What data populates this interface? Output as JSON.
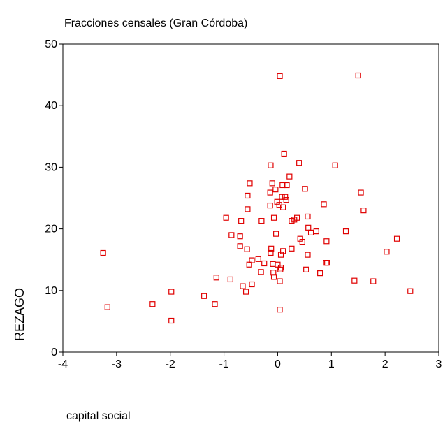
{
  "chart_data": {
    "type": "scatter",
    "title": "Fracciones censales (Gran Córdoba)",
    "x_label": "capital social",
    "y_label": "REZAGO",
    "color": "#e00000",
    "xlim": [
      -4,
      3
    ],
    "ylim": [
      0,
      50
    ],
    "xticks": [
      -4,
      -3,
      -2,
      -1,
      0,
      1,
      2,
      3
    ],
    "yticks": [
      0,
      10,
      20,
      30,
      40,
      50
    ],
    "x": [
      -3.25,
      -3.17,
      -2.33,
      -1.98,
      -1.98,
      -1.37,
      -1.17,
      -1.14,
      -0.96,
      -0.88,
      -0.86,
      -0.7,
      -0.7,
      -0.68,
      -0.65,
      -0.59,
      -0.57,
      -0.56,
      -0.56,
      -0.52,
      -0.53,
      -0.48,
      -0.48,
      -0.36,
      -0.31,
      -0.3,
      -0.25,
      -0.13,
      -0.14,
      -0.14,
      -0.13,
      -0.12,
      -0.1,
      -0.09,
      -0.08,
      -0.07,
      -0.07,
      -0.04,
      -0.03,
      -0.01,
      0,
      0.03,
      0.04,
      0.04,
      0.04,
      0.05,
      0.06,
      0.06,
      0.08,
      0.09,
      0.1,
      0.1,
      0.12,
      0.14,
      0.16,
      0.17,
      0.22,
      0.26,
      0.26,
      0.31,
      0.36,
      0.4,
      0.42,
      0.46,
      0.51,
      0.53,
      0.56,
      0.56,
      0.57,
      0.62,
      0.72,
      0.79,
      0.86,
      0.9,
      0.91,
      0.92,
      1.07,
      1.27,
      1.43,
      1.5,
      1.55,
      1.6,
      1.78,
      2.03,
      2.22,
      2.47
    ],
    "values": [
      16.1,
      7.3,
      7.8,
      9.8,
      5.1,
      9.1,
      7.8,
      12.1,
      21.8,
      11.8,
      19,
      17.2,
      18.8,
      21.3,
      10.7,
      9.8,
      16.7,
      25.4,
      23.2,
      27.4,
      14.2,
      14.9,
      11,
      15.1,
      13,
      21.3,
      14.4,
      30.3,
      25.9,
      23.8,
      16.1,
      16.8,
      27.4,
      14.3,
      12.9,
      21.8,
      12.2,
      26.4,
      19.2,
      24.4,
      14.2,
      23.9,
      44.8,
      6.9,
      11.5,
      13.4,
      15.8,
      13.7,
      25.2,
      27.1,
      23.5,
      16.4,
      32.2,
      25.2,
      24.7,
      27.1,
      28.5,
      21.3,
      16.8,
      21.5,
      21.8,
      30.7,
      18.4,
      17.9,
      26.5,
      13.4,
      22,
      15.8,
      20.2,
      19.4,
      19.6,
      12.8,
      24,
      14.5,
      18,
      14.5,
      30.3,
      19.6,
      11.6,
      44.9,
      25.9,
      23,
      11.5,
      16.3,
      18.4,
      9.9
    ]
  }
}
